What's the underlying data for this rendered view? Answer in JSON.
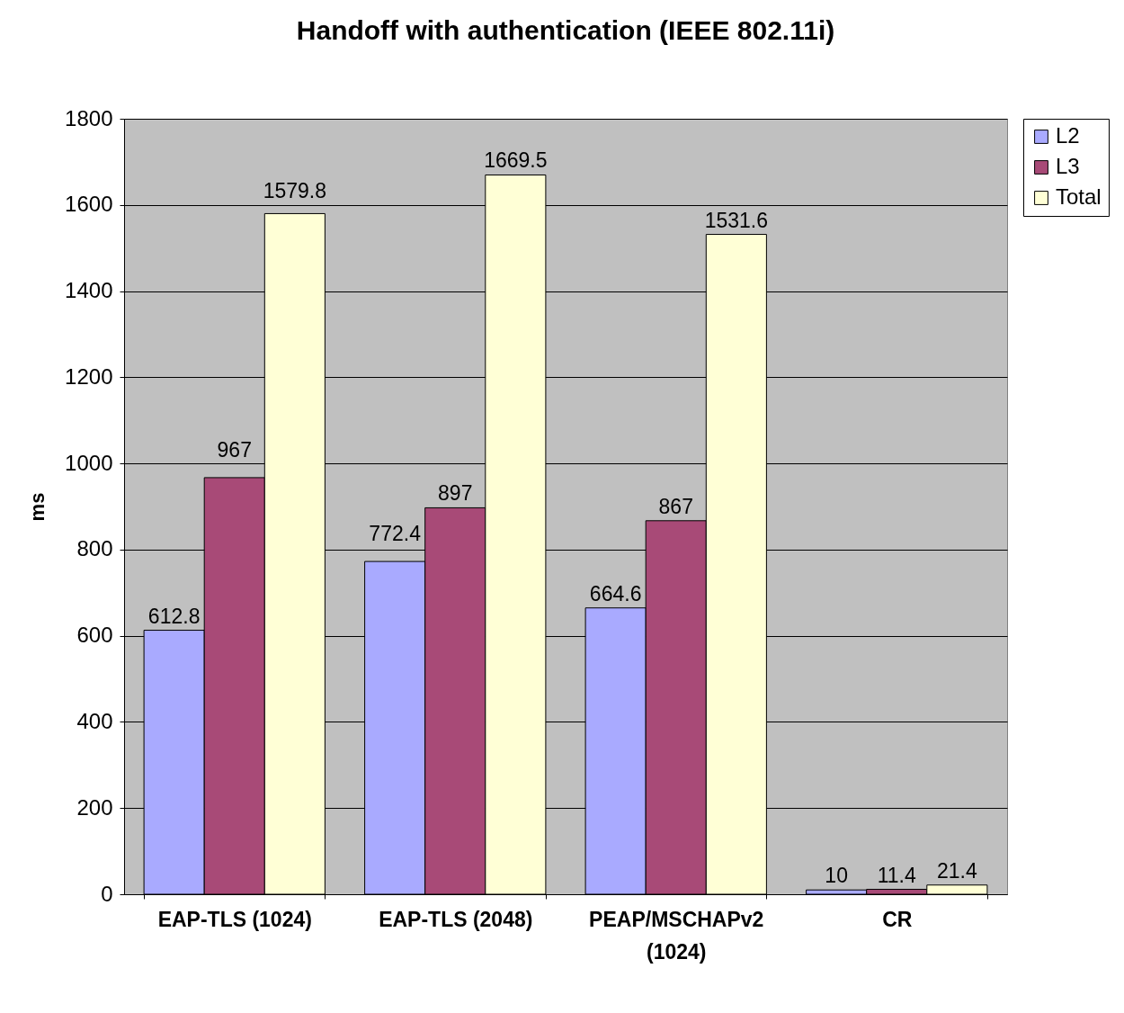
{
  "chart_data": {
    "type": "bar",
    "title": "Handoff with authentication (IEEE 802.11i)",
    "ylabel": "ms",
    "categories": [
      "EAP-TLS (1024)",
      "EAP-TLS (2048)",
      "PEAP/MSCHAPv2 (1024)",
      "CR"
    ],
    "series": [
      {
        "name": "L2",
        "color": "#a9aaff",
        "values": [
          612.8,
          772.4,
          664.6,
          10
        ]
      },
      {
        "name": "L3",
        "color": "#a84a77",
        "values": [
          967,
          897,
          867,
          11.4
        ]
      },
      {
        "name": "Total",
        "color": "#ffffd6",
        "values": [
          1579.8,
          1669.5,
          1531.6,
          21.4
        ]
      }
    ],
    "ylim": [
      0,
      1800
    ],
    "yticks": [
      0,
      200,
      400,
      600,
      800,
      1000,
      1200,
      1400,
      1600,
      1800
    ],
    "grid": "y",
    "legend": "right",
    "data_labels": true
  }
}
